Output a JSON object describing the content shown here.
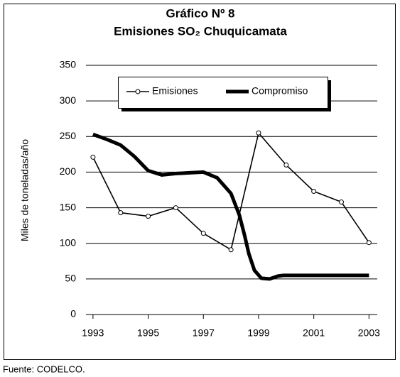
{
  "chart_data": {
    "type": "line",
    "title": [
      "Gráfico Nº 8",
      "Emisiones SO₂ Chuquicamata"
    ],
    "y_label": "Miles de toneladas/año",
    "source": "Fuente: CODELCO.",
    "series": [
      {
        "name": "Emisiones",
        "color": "#000000",
        "marker": "circle",
        "x": [
          1993,
          1994,
          1995,
          1996,
          1997,
          1998,
          1999,
          2000,
          2001,
          2002,
          2003
        ],
        "values": [
          221,
          143,
          138,
          150,
          114,
          91,
          255,
          210,
          173,
          158,
          101
        ]
      },
      {
        "name": "Compromiso",
        "color": "#000000",
        "marker": "none",
        "x": [
          1993,
          1993.5,
          1994,
          1994.5,
          1995,
          1995.5,
          1996,
          1996.5,
          1997,
          1997.5,
          1998,
          1998.3,
          1998.5,
          1998.65,
          1998.85,
          1999.1,
          1999.4,
          1999.7,
          1999.9,
          2003
        ],
        "values": [
          253,
          246,
          238,
          222,
          202,
          196,
          198,
          199,
          200,
          192,
          170,
          140,
          110,
          85,
          62,
          51,
          50,
          54,
          55,
          55
        ]
      }
    ],
    "xlim": [
      1992.9,
      2003.3
    ],
    "xticks": [
      1993,
      1995,
      1997,
      1999,
      2001,
      2003
    ],
    "ylim": [
      0,
      350
    ],
    "yticks": [
      0,
      50,
      100,
      150,
      200,
      250,
      300,
      350
    ],
    "grid": true,
    "legend": "top"
  }
}
